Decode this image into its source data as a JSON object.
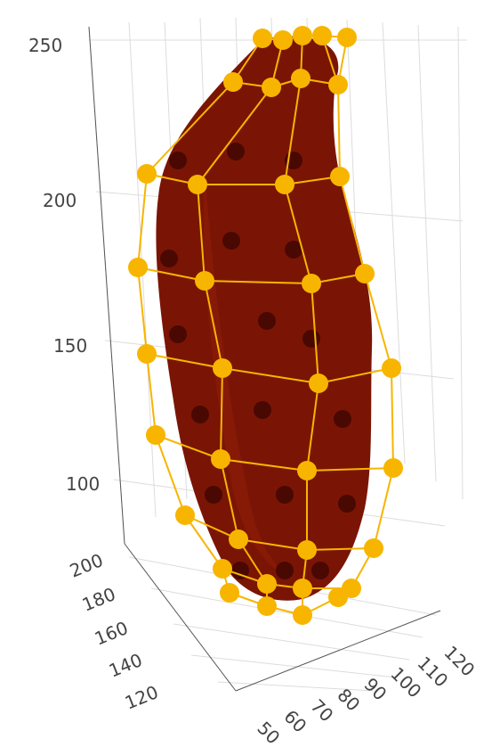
{
  "chart_data": {
    "type": "scatter",
    "title": "",
    "description_words": "3D control net (yellow points and lines) over a dark red surface",
    "colors": {
      "surface": "#7a1505",
      "surface_dark": "#4a0802",
      "control_net": "#f7b500",
      "grid": "#dcdcdc",
      "axis": "#555555"
    },
    "axes": {
      "z": {
        "label": "",
        "range": [
          60,
          255
        ],
        "ticks": [
          "100",
          "150",
          "200",
          "250"
        ]
      },
      "y": {
        "label": "",
        "range": [
          110,
          205
        ],
        "ticks": [
          "120",
          "140",
          "160",
          "180",
          "200"
        ]
      },
      "x": {
        "label": "",
        "range": [
          45,
          125
        ],
        "ticks": [
          "50",
          "60",
          "70",
          "80",
          "90",
          "100",
          "110",
          "120"
        ]
      }
    },
    "grid": true,
    "points_count": 82
  }
}
